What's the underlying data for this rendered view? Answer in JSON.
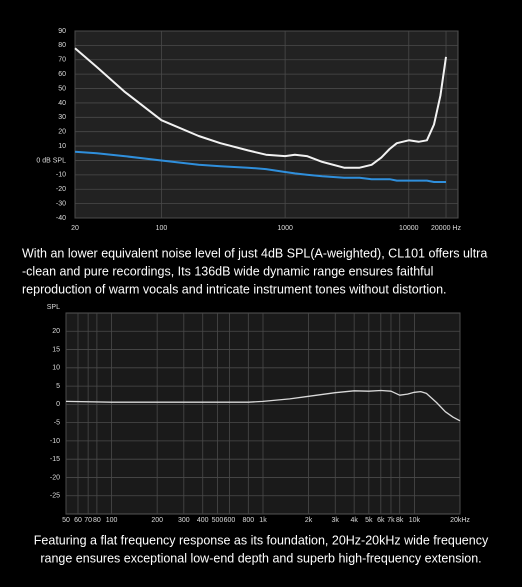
{
  "chart_data": [
    {
      "type": "line",
      "log_x": true,
      "grid": true,
      "background": "#222222",
      "xlim": [
        20,
        25000
      ],
      "ylim": [
        -40,
        90
      ],
      "xticks": [
        20,
        100,
        1000,
        10000,
        {
          "value": 20000,
          "label": "20000 Hz"
        }
      ],
      "yticks": [
        90,
        80,
        70,
        60,
        50,
        40,
        30,
        20,
        10,
        {
          "value": 0,
          "label": "0 dB SPL"
        },
        -10,
        -20,
        -30,
        -40
      ],
      "x": [
        20,
        30,
        50,
        100,
        200,
        300,
        500,
        700,
        1000,
        1200,
        1500,
        2000,
        3000,
        4000,
        5000,
        6000,
        7000,
        8000,
        10000,
        12000,
        14000,
        16000,
        18000,
        20000
      ],
      "series": [
        {
          "color": "#f2f2f2",
          "values": [
            78,
            65,
            48,
            28,
            17,
            12,
            7,
            4,
            3,
            4,
            3,
            -1,
            -5,
            -5,
            -3,
            2,
            8,
            12,
            14,
            13,
            14,
            25,
            45,
            72
          ]
        },
        {
          "color": "#2f8fdc",
          "values": [
            6,
            5,
            3,
            0,
            -3,
            -4,
            -5,
            -6,
            -8,
            -9,
            -10,
            -11,
            -12,
            -12,
            -13,
            -13,
            -13,
            -14,
            -14,
            -14,
            -14,
            -15,
            -15,
            -15
          ]
        }
      ],
      "description": [
        "With an lower equivalent noise level of just 4dB SPL(A-weighted), CL101 offers ultra",
        "-clean and pure recordings, Its 136dB wide dynamic range ensures faithful",
        "reproduction of warm vocals and intricate instrument tones without distortion."
      ]
    },
    {
      "type": "line",
      "log_x": true,
      "grid": true,
      "background": "#1a1a1a",
      "y_label": "SPL",
      "xlim": [
        50,
        20000
      ],
      "ylim": [
        -30,
        25
      ],
      "xticks": [
        50,
        60,
        70,
        80,
        100,
        200,
        300,
        400,
        500,
        600,
        800,
        {
          "value": 1000,
          "label": "1k"
        },
        {
          "value": 2000,
          "label": "2k"
        },
        {
          "value": 3000,
          "label": "3k"
        },
        {
          "value": 4000,
          "label": "4k"
        },
        {
          "value": 5000,
          "label": "5k"
        },
        {
          "value": 6000,
          "label": "6k"
        },
        {
          "value": 7000,
          "label": "7k"
        },
        {
          "value": 8000,
          "label": "8k"
        },
        {
          "value": 10000,
          "label": "10k"
        },
        {
          "value": 20000,
          "label": "20kHz"
        }
      ],
      "yticks": [
        20,
        15,
        10,
        5,
        0,
        -5,
        -10,
        -15,
        -20,
        -25
      ],
      "x": [
        50,
        100,
        200,
        500,
        800,
        1000,
        1500,
        2000,
        3000,
        4000,
        5000,
        6000,
        7000,
        8000,
        9000,
        10000,
        11000,
        12000,
        14000,
        16000,
        18000,
        20000
      ],
      "series": [
        {
          "color": "#d9d9d9",
          "values": [
            0.8,
            0.6,
            0.6,
            0.6,
            0.6,
            0.8,
            1.5,
            2.2,
            3.2,
            3.7,
            3.6,
            3.8,
            3.6,
            2.5,
            2.8,
            3.3,
            3.5,
            3,
            0.5,
            -2,
            -3.5,
            -4.5
          ]
        }
      ],
      "description": [
        "Featuring a flat frequency response as its foundation, 20Hz-20kHz wide frequency",
        "range ensures exceptional low-end depth and superb high-frequency extension."
      ]
    }
  ]
}
